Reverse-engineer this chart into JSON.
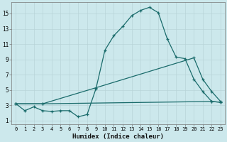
{
  "background_color": "#cce8ec",
  "grid_color": "#b8d4d8",
  "line_color": "#1a6b6b",
  "xlabel": "Humidex (Indice chaleur)",
  "xlim": [
    -0.5,
    23.5
  ],
  "ylim": [
    0.5,
    16.5
  ],
  "yticks": [
    1,
    3,
    5,
    7,
    9,
    11,
    13,
    15
  ],
  "xticks": [
    0,
    1,
    2,
    3,
    4,
    5,
    6,
    7,
    8,
    9,
    10,
    11,
    12,
    13,
    14,
    15,
    16,
    17,
    18,
    19,
    20,
    21,
    22,
    23
  ],
  "line1_x": [
    0,
    1,
    2,
    3,
    4,
    5,
    6,
    7,
    8,
    9,
    10,
    11,
    12,
    13,
    14,
    15,
    16,
    17,
    18,
    19,
    20,
    21,
    22,
    23
  ],
  "line1_y": [
    3.2,
    2.3,
    2.8,
    2.3,
    2.2,
    2.3,
    2.3,
    1.5,
    1.8,
    5.2,
    10.2,
    12.1,
    13.3,
    14.7,
    15.4,
    15.8,
    15.1,
    11.7,
    9.3,
    9.1,
    6.4,
    4.8,
    3.5,
    3.4
  ],
  "line2_x": [
    0,
    3,
    9,
    20,
    21,
    22,
    23
  ],
  "line2_y": [
    3.2,
    3.2,
    5.3,
    9.2,
    6.4,
    4.8,
    3.5
  ],
  "line3_x": [
    0,
    3,
    22,
    23
  ],
  "line3_y": [
    3.2,
    3.2,
    3.5,
    3.4
  ]
}
